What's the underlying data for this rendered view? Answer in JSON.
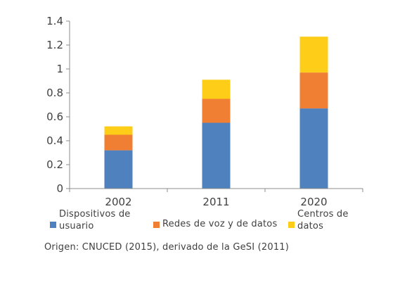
{
  "chart_data": {
    "type": "bar",
    "stacked": true,
    "categories": [
      "2002",
      "2011",
      "2020"
    ],
    "series": [
      {
        "name": "Dispositivos de usuario",
        "color": "#4E81BD",
        "values": [
          0.32,
          0.55,
          0.67
        ]
      },
      {
        "name": "Redes de voz y de datos",
        "color": "#F07F33",
        "values": [
          0.13,
          0.2,
          0.3
        ]
      },
      {
        "name": "Centros de datos",
        "color": "#FECD18",
        "values": [
          0.07,
          0.16,
          0.3
        ]
      }
    ],
    "ylim": [
      0,
      1.4
    ],
    "yticks": [
      "0",
      "0.2",
      "0.4",
      "0.6",
      "0.8",
      "1",
      "1.2",
      "1.4"
    ],
    "grid": false,
    "legend_position": "bottom"
  },
  "legend": {
    "item1": {
      "line1": "Dispositivos de",
      "line2": "usuario",
      "color": "#4E81BD"
    },
    "item2": {
      "line1": "Redes de voz y de datos",
      "color": "#F07F33"
    },
    "item3": {
      "line1": "Centros de",
      "line2": "datos",
      "color": "#FECD18"
    }
  },
  "source": "Origen: CNUCED (2015), derivado de la GeSI (2011)"
}
